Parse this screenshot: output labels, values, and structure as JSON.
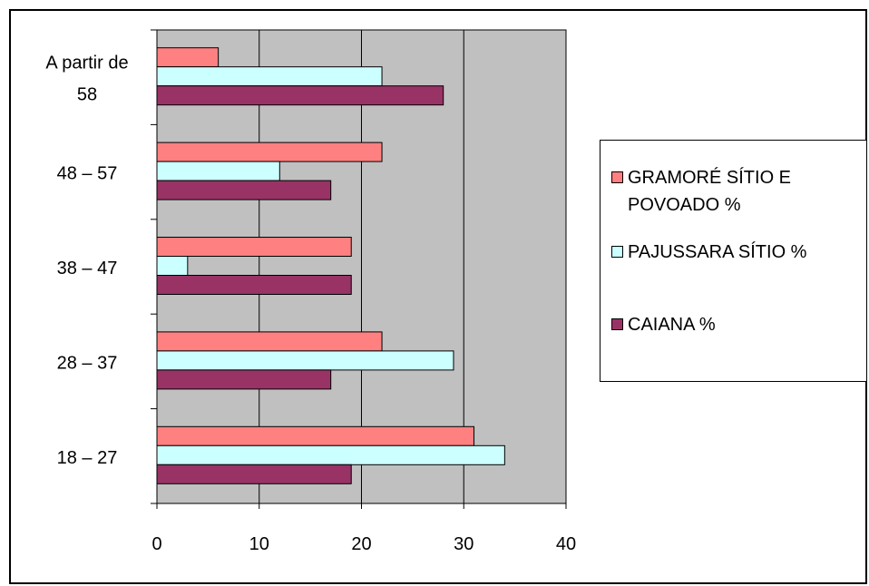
{
  "chart_data": {
    "type": "bar",
    "orientation": "horizontal",
    "categories": [
      "18 – 27",
      "28 – 37",
      "38 – 47",
      "48 – 57",
      "A partir de 58"
    ],
    "series": [
      {
        "name": "GRAMORÉ SÍTIO E POVOADO %",
        "color": "#ff8080",
        "values": [
          31,
          22,
          19,
          22,
          6
        ]
      },
      {
        "name": "PAJUSSARA SÍTIO %",
        "color": "#ccffff",
        "values": [
          34,
          29,
          3,
          12,
          22
        ]
      },
      {
        "name": "CAIANA %",
        "color": "#993366",
        "values": [
          19,
          17,
          19,
          17,
          28
        ]
      }
    ],
    "xlim": [
      0,
      40
    ],
    "xticks": [
      "0",
      "10",
      "20",
      "30",
      "40"
    ],
    "grid": true,
    "plot_background": "#c0c0c0",
    "legend_position": "right",
    "title": "",
    "xlabel": "",
    "ylabel": ""
  },
  "legend": {
    "items": [
      {
        "label": "GRAMORÉ SÍTIO E POVOADO %",
        "color": "#ff8080"
      },
      {
        "label": "PAJUSSARA SÍTIO %",
        "color": "#ccffff"
      },
      {
        "label": "CAIANA %",
        "color": "#993366"
      }
    ]
  }
}
